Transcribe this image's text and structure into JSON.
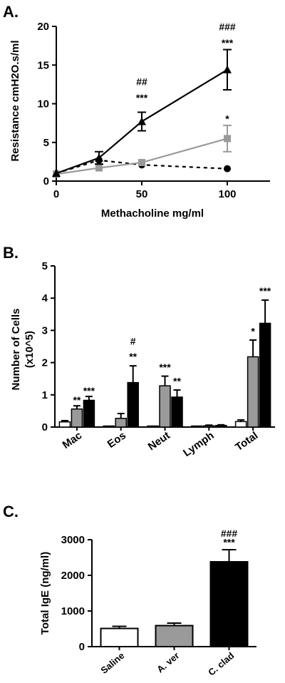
{
  "panels": {
    "a": {
      "label": "A."
    },
    "b": {
      "label": "B."
    },
    "c": {
      "label": "C."
    }
  },
  "colors": {
    "black": "#000000",
    "gray": "#9a9a9a",
    "white": "#ffffff"
  },
  "chart_data": [
    {
      "id": "A",
      "type": "line",
      "xlabel": "Methacholine mg/ml",
      "ylabel": "Resistance cmH2O.s/ml",
      "xlim": [
        0,
        125
      ],
      "ylim": [
        0,
        20
      ],
      "xticks": [
        0,
        50,
        100
      ],
      "yticks": [
        0,
        5,
        10,
        15,
        20
      ],
      "x": [
        0,
        25,
        50,
        100
      ],
      "series": [
        {
          "key": "saline",
          "marker": "circle",
          "dash": true,
          "color": "#000000",
          "values": [
            1.0,
            2.7,
            2.1,
            1.6
          ],
          "err": [
            0.1,
            0.2,
            0.1,
            0.1
          ]
        },
        {
          "key": "aver",
          "marker": "square",
          "dash": false,
          "color": "#9a9a9a",
          "values": [
            0.9,
            1.7,
            2.4,
            5.5
          ],
          "err": [
            0.15,
            0.2,
            0.2,
            1.7
          ]
        },
        {
          "key": "cclad",
          "marker": "triangle",
          "dash": false,
          "color": "#000000",
          "values": [
            1.0,
            3.0,
            7.7,
            14.4
          ],
          "err": [
            0.15,
            0.8,
            1.2,
            2.6
          ]
        }
      ],
      "annotations": [
        {
          "x": 50,
          "y": 10.3,
          "text": "***"
        },
        {
          "x": 50,
          "y": 12.4,
          "text": "##"
        },
        {
          "x": 100,
          "y": 17.4,
          "text": "***"
        },
        {
          "x": 100,
          "y": 19.5,
          "text": "###"
        },
        {
          "x": 100,
          "y": 7.6,
          "text": "*"
        }
      ]
    },
    {
      "id": "B",
      "type": "bar",
      "ylabel_lines": [
        "Number of Cells",
        "(x10^5)"
      ],
      "ylim": [
        0,
        5
      ],
      "yticks": [
        0,
        1,
        2,
        3,
        4,
        5
      ],
      "categories": [
        "Mac",
        "Eos",
        "Neut",
        "Lymph",
        "Total"
      ],
      "groups": [
        {
          "key": "saline",
          "color": "#ffffff",
          "values": [
            0.16,
            0.0,
            0.0,
            0.0,
            0.17
          ],
          "err": [
            0.04,
            0.0,
            0.0,
            0.0,
            0.05
          ]
        },
        {
          "key": "aver",
          "color": "#9a9a9a",
          "values": [
            0.56,
            0.27,
            1.28,
            0.04,
            2.18
          ],
          "err": [
            0.1,
            0.15,
            0.3,
            0.02,
            0.52
          ]
        },
        {
          "key": "cclad",
          "color": "#000000",
          "values": [
            0.83,
            1.38,
            0.93,
            0.05,
            3.22
          ],
          "err": [
            0.12,
            0.52,
            0.22,
            0.02,
            0.72
          ]
        }
      ],
      "annotations": [
        {
          "cat": 0,
          "group": 1,
          "text": "**",
          "y": 0.73
        },
        {
          "cat": 0,
          "group": 2,
          "text": "***",
          "y": 1.02
        },
        {
          "cat": 1,
          "group": 2,
          "text": "**",
          "y": 2.08
        },
        {
          "cat": 1,
          "group": 2,
          "text": "#",
          "y": 2.55
        },
        {
          "cat": 2,
          "group": 1,
          "text": "***",
          "y": 1.75
        },
        {
          "cat": 2,
          "group": 2,
          "text": "**",
          "y": 1.32
        },
        {
          "cat": 4,
          "group": 1,
          "text": "*",
          "y": 2.86
        },
        {
          "cat": 4,
          "group": 2,
          "text": "***",
          "y": 4.12
        }
      ]
    },
    {
      "id": "C",
      "type": "bar",
      "ylabel": "Total IgE (ng/ml)",
      "ylim": [
        0,
        3000
      ],
      "yticks": [
        0,
        1000,
        2000,
        3000
      ],
      "categories": [
        "Saline",
        "A. ver",
        "C. clad"
      ],
      "colors": [
        "#ffffff",
        "#9a9a9a",
        "#000000"
      ],
      "values": [
        510,
        590,
        2380
      ],
      "err": [
        60,
        70,
        340
      ],
      "annotations": [
        {
          "cat": 2,
          "text": "***",
          "y": 2830
        },
        {
          "cat": 2,
          "text": "###",
          "y": 3080
        }
      ]
    }
  ]
}
